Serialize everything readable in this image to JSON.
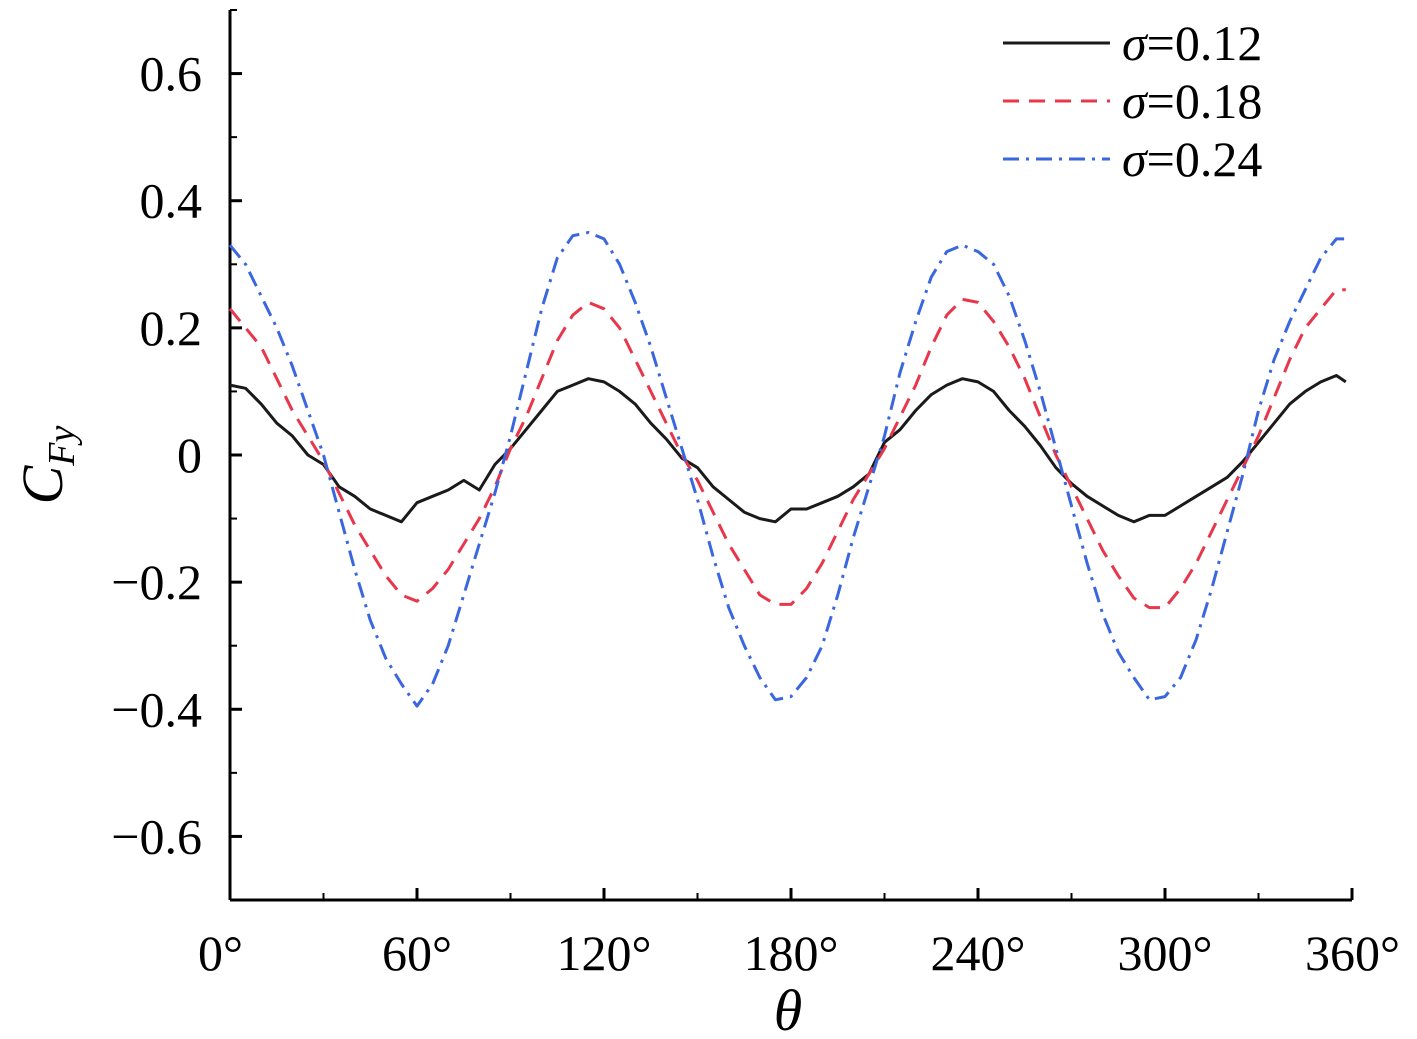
{
  "chart_data": {
    "type": "line",
    "title": "",
    "xlabel": "θ",
    "ylabel": {
      "main": "C",
      "sub": "Fy"
    },
    "xlim": [
      0,
      360
    ],
    "ylim": [
      -0.7,
      0.7
    ],
    "grid": false,
    "legend": "top-right",
    "x_ticks": [
      {
        "value": 0,
        "label": "0°"
      },
      {
        "value": 60,
        "label": "60°"
      },
      {
        "value": 120,
        "label": "120°"
      },
      {
        "value": 180,
        "label": "180°"
      },
      {
        "value": 240,
        "label": "240°"
      },
      {
        "value": 300,
        "label": "300°"
      },
      {
        "value": 360,
        "label": "360°"
      }
    ],
    "y_ticks": [
      {
        "value": 0.6,
        "label": "0.6"
      },
      {
        "value": 0.4,
        "label": "0.4"
      },
      {
        "value": 0.2,
        "label": "0.2"
      },
      {
        "value": 0,
        "label": "0"
      },
      {
        "value": -0.2,
        "label": "−0.2"
      },
      {
        "value": -0.4,
        "label": "−0.4"
      },
      {
        "value": -0.6,
        "label": "−0.6"
      }
    ],
    "series": [
      {
        "name": "σ=0.12",
        "legend_symbol": "σ",
        "legend_value": "=0.12",
        "color": "#1a1a1a",
        "dash": "solid",
        "x": [
          0,
          5,
          10,
          15,
          20,
          25,
          30,
          35,
          40,
          45,
          50,
          55,
          60,
          65,
          70,
          75,
          80,
          85,
          90,
          95,
          100,
          105,
          110,
          115,
          120,
          125,
          130,
          135,
          140,
          145,
          150,
          155,
          160,
          165,
          170,
          175,
          180,
          185,
          190,
          195,
          200,
          205,
          210,
          215,
          220,
          225,
          230,
          235,
          240,
          245,
          250,
          255,
          260,
          265,
          270,
          275,
          280,
          285,
          290,
          295,
          300,
          305,
          310,
          315,
          320,
          325,
          330,
          335,
          340,
          345,
          350,
          355,
          358
        ],
        "y": [
          0.11,
          0.105,
          0.08,
          0.05,
          0.03,
          0.0,
          -0.015,
          -0.05,
          -0.065,
          -0.085,
          -0.095,
          -0.105,
          -0.075,
          -0.065,
          -0.055,
          -0.04,
          -0.055,
          -0.015,
          0.01,
          0.04,
          0.07,
          0.1,
          0.11,
          0.12,
          0.115,
          0.1,
          0.08,
          0.05,
          0.025,
          -0.005,
          -0.02,
          -0.05,
          -0.07,
          -0.09,
          -0.1,
          -0.105,
          -0.085,
          -0.085,
          -0.075,
          -0.065,
          -0.05,
          -0.03,
          0.02,
          0.04,
          0.07,
          0.095,
          0.11,
          0.12,
          0.115,
          0.1,
          0.07,
          0.045,
          0.015,
          -0.02,
          -0.045,
          -0.065,
          -0.08,
          -0.095,
          -0.105,
          -0.095,
          -0.095,
          -0.08,
          -0.065,
          -0.05,
          -0.035,
          -0.01,
          0.02,
          0.05,
          0.08,
          0.1,
          0.115,
          0.125,
          0.115
        ]
      },
      {
        "name": "σ=0.18",
        "legend_symbol": "σ",
        "legend_value": "=0.18",
        "color": "#e8364a",
        "dash": "dashed",
        "x": [
          0,
          5,
          10,
          15,
          20,
          25,
          30,
          35,
          40,
          45,
          50,
          55,
          60,
          65,
          70,
          75,
          80,
          85,
          90,
          95,
          100,
          105,
          110,
          115,
          120,
          125,
          130,
          135,
          140,
          145,
          150,
          155,
          160,
          165,
          170,
          175,
          180,
          185,
          190,
          195,
          200,
          205,
          210,
          215,
          220,
          225,
          230,
          235,
          240,
          245,
          250,
          255,
          260,
          265,
          270,
          275,
          280,
          285,
          290,
          295,
          300,
          305,
          310,
          315,
          320,
          325,
          330,
          335,
          340,
          345,
          350,
          355,
          358
        ],
        "y": [
          0.23,
          0.2,
          0.17,
          0.12,
          0.07,
          0.03,
          -0.01,
          -0.06,
          -0.11,
          -0.15,
          -0.19,
          -0.22,
          -0.23,
          -0.21,
          -0.18,
          -0.14,
          -0.1,
          -0.05,
          0.01,
          0.06,
          0.12,
          0.18,
          0.22,
          0.24,
          0.23,
          0.2,
          0.15,
          0.1,
          0.05,
          0.0,
          -0.04,
          -0.09,
          -0.14,
          -0.18,
          -0.22,
          -0.235,
          -0.235,
          -0.21,
          -0.17,
          -0.12,
          -0.07,
          -0.03,
          0.01,
          0.06,
          0.11,
          0.17,
          0.22,
          0.245,
          0.24,
          0.21,
          0.17,
          0.12,
          0.06,
          0.0,
          -0.05,
          -0.1,
          -0.15,
          -0.19,
          -0.225,
          -0.24,
          -0.24,
          -0.21,
          -0.17,
          -0.12,
          -0.07,
          -0.02,
          0.03,
          0.09,
          0.15,
          0.2,
          0.23,
          0.26,
          0.26
        ]
      },
      {
        "name": "σ=0.24",
        "legend_symbol": "σ",
        "legend_value": "=0.24",
        "color": "#3a66e0",
        "dash": "dashdot",
        "x": [
          0,
          5,
          10,
          15,
          20,
          25,
          30,
          35,
          40,
          45,
          50,
          55,
          60,
          65,
          70,
          75,
          80,
          85,
          90,
          95,
          100,
          105,
          110,
          115,
          120,
          125,
          130,
          135,
          140,
          145,
          150,
          155,
          160,
          165,
          170,
          175,
          180,
          185,
          190,
          195,
          200,
          205,
          210,
          215,
          220,
          225,
          230,
          235,
          240,
          245,
          250,
          255,
          260,
          265,
          270,
          275,
          280,
          285,
          290,
          295,
          300,
          305,
          310,
          315,
          320,
          325,
          330,
          335,
          340,
          345,
          350,
          355,
          358
        ],
        "y": [
          0.33,
          0.3,
          0.25,
          0.2,
          0.14,
          0.07,
          0.0,
          -0.09,
          -0.18,
          -0.26,
          -0.32,
          -0.36,
          -0.395,
          -0.36,
          -0.3,
          -0.22,
          -0.14,
          -0.06,
          0.03,
          0.13,
          0.23,
          0.31,
          0.345,
          0.35,
          0.34,
          0.3,
          0.24,
          0.17,
          0.09,
          0.01,
          -0.07,
          -0.16,
          -0.24,
          -0.3,
          -0.35,
          -0.385,
          -0.38,
          -0.35,
          -0.3,
          -0.22,
          -0.13,
          -0.05,
          0.03,
          0.13,
          0.21,
          0.28,
          0.32,
          0.33,
          0.32,
          0.3,
          0.25,
          0.18,
          0.1,
          0.01,
          -0.08,
          -0.17,
          -0.25,
          -0.31,
          -0.35,
          -0.385,
          -0.38,
          -0.35,
          -0.29,
          -0.21,
          -0.12,
          -0.03,
          0.07,
          0.15,
          0.21,
          0.26,
          0.31,
          0.34,
          0.34
        ]
      }
    ]
  }
}
